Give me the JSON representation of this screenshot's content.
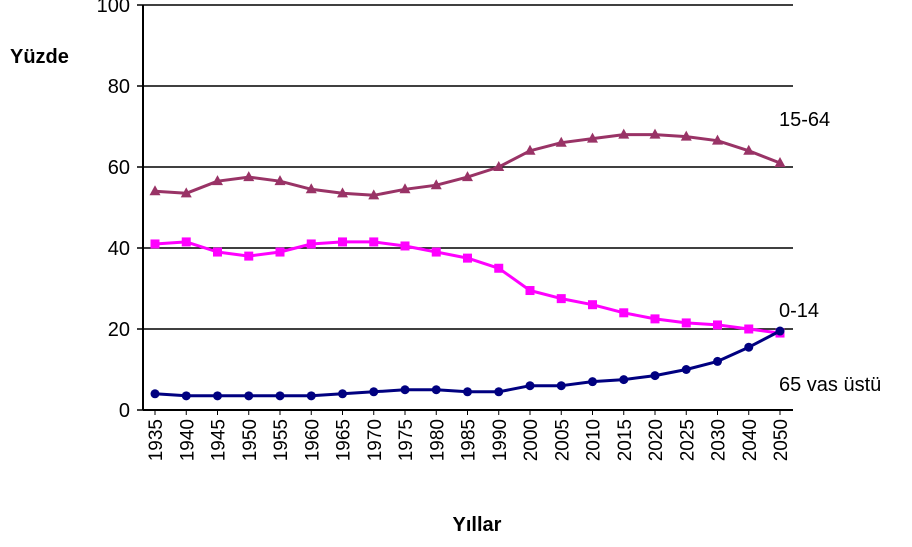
{
  "chart_data": {
    "type": "line",
    "xlabel": "Yıllar",
    "ylabel": "Yüzde",
    "ylim": [
      0,
      100
    ],
    "yticks": [
      0,
      20,
      40,
      60,
      80,
      100
    ],
    "grid": true,
    "categories": [
      "1935",
      "1940",
      "1945",
      "1950",
      "1955",
      "1960",
      "1965",
      "1970",
      "1975",
      "1980",
      "1985",
      "1990",
      "2000",
      "2005",
      "2010",
      "2015",
      "2020",
      "2025",
      "2030",
      "2040",
      "2050"
    ],
    "series": [
      {
        "name": "15-64",
        "color": "#993366",
        "marker": "triangle",
        "values": [
          54,
          53.5,
          56.5,
          57.5,
          56.5,
          54.5,
          53.5,
          53,
          54.5,
          55.5,
          57.5,
          60,
          64,
          66,
          67,
          68,
          68,
          67.5,
          66.5,
          64,
          61
        ]
      },
      {
        "name": "0-14",
        "color": "#ff00ff",
        "marker": "square",
        "values": [
          41,
          41.5,
          39,
          38,
          39,
          41,
          41.5,
          41.5,
          40.5,
          39,
          37.5,
          35,
          29.5,
          27.5,
          26,
          24,
          22.5,
          21.5,
          21,
          20,
          19
        ]
      },
      {
        "name": "65 vas üstü",
        "color": "#000080",
        "marker": "circle",
        "values": [
          4,
          3.5,
          3.5,
          3.5,
          3.5,
          3.5,
          4,
          4.5,
          5,
          5,
          4.5,
          4.5,
          6,
          6,
          7,
          7.5,
          8.5,
          10,
          12,
          15.5,
          19.5
        ]
      }
    ]
  }
}
